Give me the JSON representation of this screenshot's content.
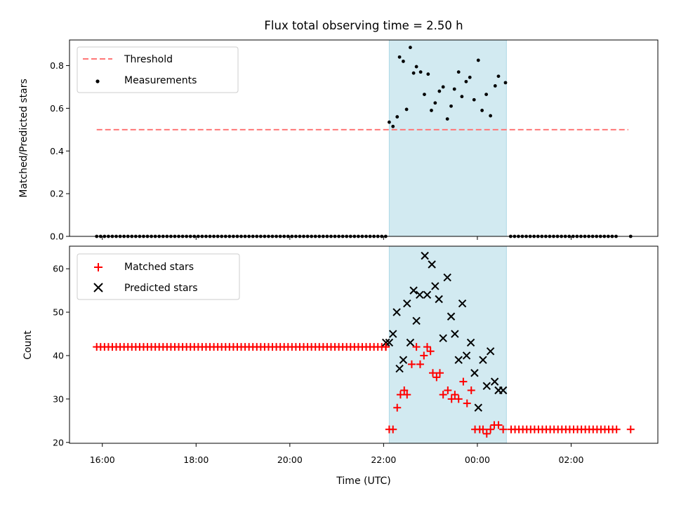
{
  "chart_data": {
    "type": "scatter",
    "title": "Flux total observing time = 2.50 h",
    "xlabel": "Time (UTC)",
    "x_unit": "hours",
    "x_range": [
      15.3,
      27.85
    ],
    "x_ticks": [
      {
        "value": 16,
        "label": "16:00"
      },
      {
        "value": 18,
        "label": "18:00"
      },
      {
        "value": 20,
        "label": "20:00"
      },
      {
        "value": 22,
        "label": "22:00"
      },
      {
        "value": 24,
        "label": "00:00"
      },
      {
        "value": 26,
        "label": "02:00"
      }
    ],
    "observing_window": {
      "x_start": 22.12,
      "x_end": 24.62,
      "color": "#add8e6"
    },
    "panels": [
      {
        "name": "top",
        "ylabel": "Matched/Predicted stars",
        "ylim": [
          0,
          0.92
        ],
        "y_ticks": [
          {
            "value": 0,
            "label": "0.0"
          },
          {
            "value": 0.2,
            "label": "0.2"
          },
          {
            "value": 0.4,
            "label": "0.4"
          },
          {
            "value": 0.6,
            "label": "0.6"
          },
          {
            "value": 0.8,
            "label": "0.8"
          }
        ],
        "legend": [
          {
            "label": "Threshold",
            "marker": "dash",
            "color": "#ff7777"
          },
          {
            "label": "Measurements",
            "marker": "dot",
            "color": "#000000"
          }
        ],
        "threshold": {
          "y": 0.5,
          "x_start": 15.88,
          "x_end": 27.22,
          "color": "#ff7777"
        },
        "measurements_baseline": {
          "y": 0,
          "x_start": 15.88,
          "x_end": 27.0,
          "step": 0.0833,
          "extra_x": [
            27.27
          ]
        },
        "measurements": [
          {
            "x": 22.12,
            "y": 0.535
          },
          {
            "x": 22.2,
            "y": 0.515
          },
          {
            "x": 22.29,
            "y": 0.56
          },
          {
            "x": 22.34,
            "y": 0.84
          },
          {
            "x": 22.42,
            "y": 0.82
          },
          {
            "x": 22.49,
            "y": 0.595
          },
          {
            "x": 22.57,
            "y": 0.885
          },
          {
            "x": 22.64,
            "y": 0.765
          },
          {
            "x": 22.7,
            "y": 0.795
          },
          {
            "x": 22.79,
            "y": 0.77
          },
          {
            "x": 22.87,
            "y": 0.665
          },
          {
            "x": 22.95,
            "y": 0.76
          },
          {
            "x": 23.02,
            "y": 0.59
          },
          {
            "x": 23.1,
            "y": 0.625
          },
          {
            "x": 23.19,
            "y": 0.68
          },
          {
            "x": 23.27,
            "y": 0.7
          },
          {
            "x": 23.36,
            "y": 0.55
          },
          {
            "x": 23.44,
            "y": 0.61
          },
          {
            "x": 23.51,
            "y": 0.69
          },
          {
            "x": 23.6,
            "y": 0.77
          },
          {
            "x": 23.67,
            "y": 0.655
          },
          {
            "x": 23.76,
            "y": 0.725
          },
          {
            "x": 23.84,
            "y": 0.745
          },
          {
            "x": 23.93,
            "y": 0.64
          },
          {
            "x": 24.02,
            "y": 0.825
          },
          {
            "x": 24.1,
            "y": 0.59
          },
          {
            "x": 24.19,
            "y": 0.665
          },
          {
            "x": 24.28,
            "y": 0.565
          },
          {
            "x": 24.38,
            "y": 0.705
          },
          {
            "x": 24.45,
            "y": 0.75
          },
          {
            "x": 24.6,
            "y": 0.72
          }
        ]
      },
      {
        "name": "bottom",
        "ylabel": "Count",
        "ylim": [
          19.8,
          65.2
        ],
        "y_ticks": [
          {
            "value": 20,
            "label": "20"
          },
          {
            "value": 30,
            "label": "30"
          },
          {
            "value": 40,
            "label": "40"
          },
          {
            "value": 50,
            "label": "50"
          },
          {
            "value": 60,
            "label": "60"
          }
        ],
        "legend": [
          {
            "label": "Matched stars",
            "marker": "plus",
            "color": "#ff0000"
          },
          {
            "label": "Predicted stars",
            "marker": "x",
            "color": "#000000"
          }
        ],
        "baseline_segments": [
          {
            "x_start": 15.88,
            "x_end": 22.1,
            "step": 0.0833,
            "y": 42
          },
          {
            "x_start": 24.72,
            "x_end": 27.0,
            "step": 0.0833,
            "y": 23,
            "extra_x": [
              27.27
            ]
          }
        ],
        "series": [
          {
            "name": "Matched stars",
            "marker": "plus",
            "color": "#ff0000",
            "points": [
              {
                "x": 22.05,
                "y": 42
              },
              {
                "x": 22.12,
                "y": 23
              },
              {
                "x": 22.2,
                "y": 23
              },
              {
                "x": 22.29,
                "y": 28
              },
              {
                "x": 22.36,
                "y": 31
              },
              {
                "x": 22.44,
                "y": 32
              },
              {
                "x": 22.5,
                "y": 31
              },
              {
                "x": 22.6,
                "y": 38
              },
              {
                "x": 22.7,
                "y": 42
              },
              {
                "x": 22.78,
                "y": 38
              },
              {
                "x": 22.86,
                "y": 40
              },
              {
                "x": 22.93,
                "y": 42
              },
              {
                "x": 23.0,
                "y": 41
              },
              {
                "x": 23.05,
                "y": 36
              },
              {
                "x": 23.13,
                "y": 35
              },
              {
                "x": 23.2,
                "y": 36
              },
              {
                "x": 23.27,
                "y": 31
              },
              {
                "x": 23.37,
                "y": 32
              },
              {
                "x": 23.45,
                "y": 30
              },
              {
                "x": 23.52,
                "y": 31
              },
              {
                "x": 23.6,
                "y": 30
              },
              {
                "x": 23.7,
                "y": 34
              },
              {
                "x": 23.78,
                "y": 29
              },
              {
                "x": 23.87,
                "y": 32
              },
              {
                "x": 23.95,
                "y": 23
              },
              {
                "x": 24.05,
                "y": 23
              },
              {
                "x": 24.12,
                "y": 23
              },
              {
                "x": 24.2,
                "y": 22
              },
              {
                "x": 24.28,
                "y": 23
              },
              {
                "x": 24.36,
                "y": 24
              },
              {
                "x": 24.45,
                "y": 24
              },
              {
                "x": 24.55,
                "y": 23
              }
            ]
          },
          {
            "name": "Predicted stars",
            "marker": "x",
            "color": "#000000",
            "points": [
              {
                "x": 22.05,
                "y": 43
              },
              {
                "x": 22.12,
                "y": 43
              },
              {
                "x": 22.2,
                "y": 45
              },
              {
                "x": 22.28,
                "y": 50
              },
              {
                "x": 22.34,
                "y": 37
              },
              {
                "x": 22.42,
                "y": 39
              },
              {
                "x": 22.5,
                "y": 52
              },
              {
                "x": 22.57,
                "y": 43
              },
              {
                "x": 22.64,
                "y": 55
              },
              {
                "x": 22.7,
                "y": 48
              },
              {
                "x": 22.77,
                "y": 54
              },
              {
                "x": 22.88,
                "y": 63
              },
              {
                "x": 22.93,
                "y": 54
              },
              {
                "x": 23.03,
                "y": 61
              },
              {
                "x": 23.1,
                "y": 56
              },
              {
                "x": 23.18,
                "y": 53
              },
              {
                "x": 23.27,
                "y": 44
              },
              {
                "x": 23.36,
                "y": 58
              },
              {
                "x": 23.44,
                "y": 49
              },
              {
                "x": 23.52,
                "y": 45
              },
              {
                "x": 23.6,
                "y": 39
              },
              {
                "x": 23.68,
                "y": 52
              },
              {
                "x": 23.77,
                "y": 40
              },
              {
                "x": 23.86,
                "y": 43
              },
              {
                "x": 23.94,
                "y": 36
              },
              {
                "x": 24.02,
                "y": 28
              },
              {
                "x": 24.12,
                "y": 39
              },
              {
                "x": 24.2,
                "y": 33
              },
              {
                "x": 24.28,
                "y": 41
              },
              {
                "x": 24.37,
                "y": 34
              },
              {
                "x": 24.45,
                "y": 32
              },
              {
                "x": 24.55,
                "y": 32
              }
            ]
          }
        ]
      }
    ]
  }
}
